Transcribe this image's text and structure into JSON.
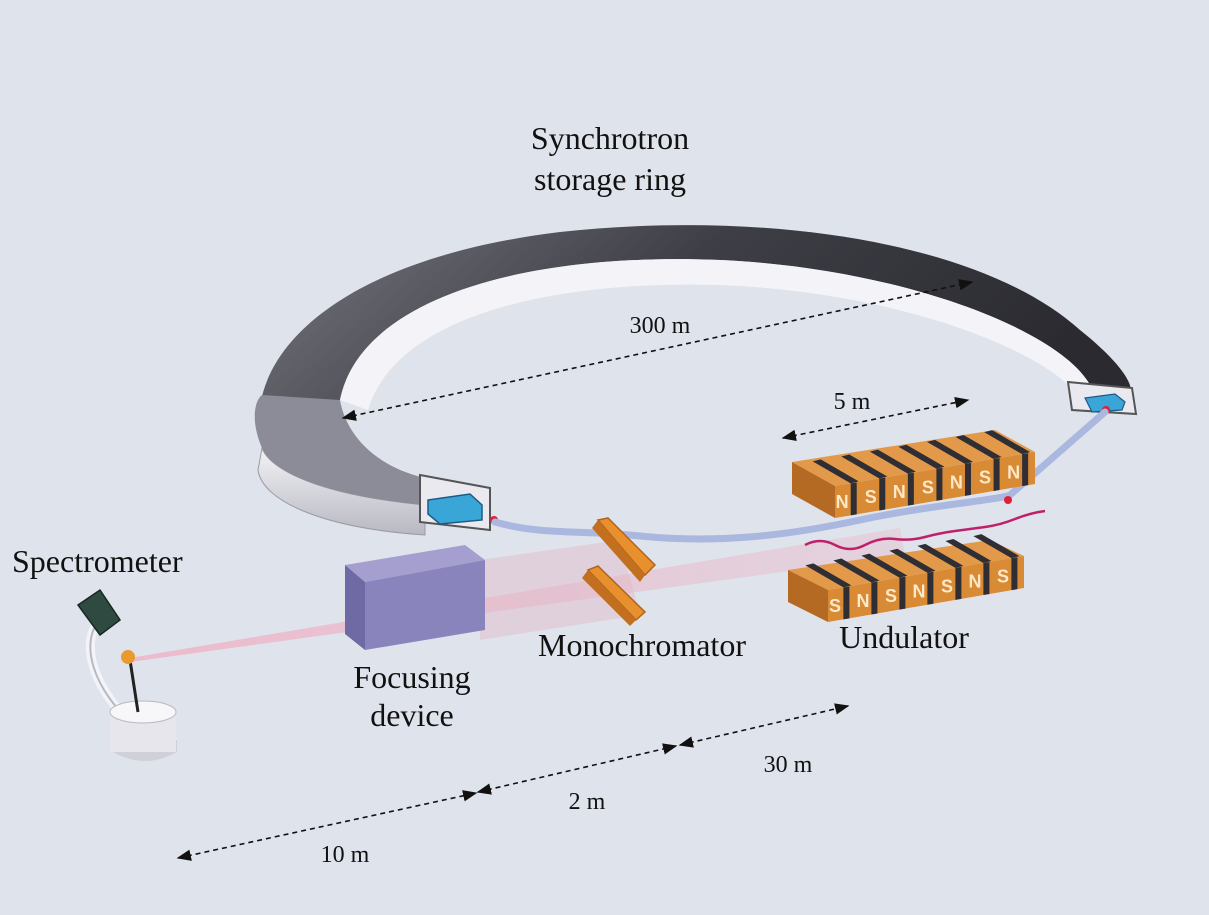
{
  "labels": {
    "ring_title_line1": "Synchrotron",
    "ring_title_line2": "storage ring",
    "spectrometer": "Spectrometer",
    "focusing_line1": "Focusing",
    "focusing_line2": "device",
    "monochromator": "Monochromator",
    "undulator": "Undulator"
  },
  "dimensions": {
    "ring_diameter": "300 m",
    "undulator_length": "5 m",
    "d_undulator": "30  m",
    "d_mono": "2  m",
    "d_sample": "10  m"
  },
  "undulator_top_letters": [
    "N",
    "S",
    "N",
    "S",
    "N",
    "S",
    "N"
  ],
  "undulator_bottom_letters": [
    "S",
    "N",
    "S",
    "N",
    "S",
    "N",
    "S"
  ],
  "colors": {
    "background": "#dfe3ec",
    "ring": "#55555f",
    "magnet": "#d98a35",
    "beam": "#e7a4b8",
    "optics": "#e08a2e",
    "focusing_box": "#8a84bd"
  }
}
